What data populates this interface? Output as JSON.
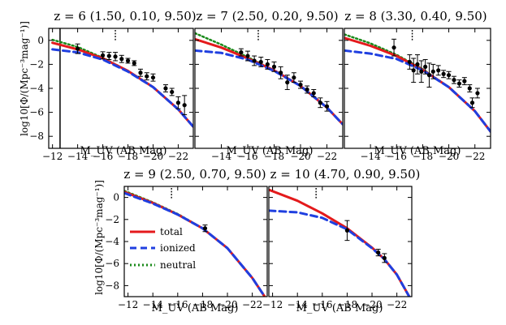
{
  "figure": {
    "ylabel": "log10[Φ/(Mpc⁻³mag⁻¹)]",
    "legend": {
      "placement": "lower-left of panel z = 9",
      "entries": [
        {
          "label": "total",
          "color": "#e41a1c",
          "style": "solid"
        },
        {
          "label": "ionized",
          "color": "#1f3fe0",
          "style": "dashed"
        },
        {
          "label": "neutral",
          "color": "#1a8a1a",
          "style": "dotted"
        }
      ]
    }
  },
  "chart_data": [
    {
      "type": "line",
      "title": "z = 6 (1.50, 0.10, 9.50)",
      "xlabel": "M_UV (AB Mag)",
      "ylabel": "log10[Φ/(Mpc⁻³mag⁻¹)]",
      "xlim": [
        -11.7,
        -23.2
      ],
      "ylim": [
        -9,
        1
      ],
      "xticks": [
        -12,
        -14,
        -16,
        -18,
        -20,
        -22
      ],
      "yticks": [
        0,
        -2,
        -4,
        -6,
        -8
      ],
      "xtick_labels": [
        "−12",
        "−14",
        "−16",
        "−18",
        "−20",
        "−22"
      ],
      "ytick_labels": [
        "0",
        "−2",
        "−4",
        "−6",
        "−8"
      ],
      "marker_x": -17.0,
      "vline_x": -12.6,
      "series": [
        {
          "name": "total",
          "x": [
            -12,
            -14,
            -16,
            -18,
            -20,
            -22,
            -23.2
          ],
          "y": [
            -0.2,
            -0.75,
            -1.5,
            -2.55,
            -3.9,
            -5.75,
            -7.2
          ]
        },
        {
          "name": "ionized",
          "x": [
            -12,
            -14,
            -16,
            -18,
            -20,
            -22,
            -23.2
          ],
          "y": [
            -0.75,
            -1.0,
            -1.6,
            -2.6,
            -3.9,
            -5.75,
            -7.2
          ]
        },
        {
          "name": "neutral",
          "x": [
            -12,
            -14,
            -16,
            -18,
            -20,
            -22,
            -23.2
          ],
          "y": [
            0.05,
            -0.55,
            -1.45,
            -2.55,
            -3.9,
            -5.75,
            -7.2
          ]
        }
      ],
      "observations": [
        {
          "x": -14.0,
          "y": -0.7,
          "err": 0.4
        },
        {
          "x": -16.0,
          "y": -1.25,
          "err": 0.3
        },
        {
          "x": -16.5,
          "y": -1.3,
          "err": 0.3
        },
        {
          "x": -17.0,
          "y": -1.35,
          "err": 0.35
        },
        {
          "x": -17.5,
          "y": -1.55,
          "err": 0.3
        },
        {
          "x": -18.0,
          "y": -1.7,
          "err": 0.2
        },
        {
          "x": -18.5,
          "y": -1.9,
          "err": 0.2
        },
        {
          "x": -19.0,
          "y": -2.7,
          "err": 0.3
        },
        {
          "x": -19.5,
          "y": -3.0,
          "err": 0.3
        },
        {
          "x": -20.0,
          "y": -3.1,
          "err": 0.3
        },
        {
          "x": -21.0,
          "y": -4.0,
          "err": 0.3
        },
        {
          "x": -21.5,
          "y": -4.3,
          "err": 0.3
        },
        {
          "x": -22.0,
          "y": -5.2,
          "err": 0.5
        },
        {
          "x": -22.5,
          "y": -5.4,
          "err": 0.8
        }
      ]
    },
    {
      "type": "line",
      "title": "z = 7 (2.50, 0.20, 9.50)",
      "xlabel": "M_UV (AB Mag)",
      "ylabel": "",
      "xlim": [
        -12,
        -23.2
      ],
      "ylim": [
        -9,
        1
      ],
      "xticks": [
        -14,
        -16,
        -18,
        -20,
        -22
      ],
      "yticks": [
        0,
        -2,
        -4,
        -6,
        -8
      ],
      "xtick_labels": [
        "−14",
        "−16",
        "−18",
        "−20",
        "−22"
      ],
      "ytick_labels": [],
      "marker_x": -16.8,
      "vline_x": null,
      "series": [
        {
          "name": "total",
          "x": [
            -12,
            -14,
            -16,
            -18,
            -20,
            -22,
            -23.2
          ],
          "y": [
            0.1,
            -0.6,
            -1.5,
            -2.5,
            -3.8,
            -5.6,
            -7.0
          ]
        },
        {
          "name": "ionized",
          "x": [
            -12,
            -14,
            -16,
            -18,
            -20,
            -22,
            -23.2
          ],
          "y": [
            -0.85,
            -1.05,
            -1.6,
            -2.55,
            -3.8,
            -5.6,
            -7.0
          ]
        },
        {
          "name": "neutral",
          "x": [
            -12,
            -14,
            -16,
            -18,
            -20,
            -22,
            -23.2
          ],
          "y": [
            0.6,
            -0.35,
            -1.4,
            -2.5,
            -3.8,
            -5.6,
            -7.0
          ]
        }
      ],
      "observations": [
        {
          "x": -15.5,
          "y": -1.0,
          "err": 0.3
        },
        {
          "x": -16.0,
          "y": -1.3,
          "err": 0.4
        },
        {
          "x": -16.5,
          "y": -1.7,
          "err": 0.4
        },
        {
          "x": -17.0,
          "y": -1.8,
          "err": 0.4
        },
        {
          "x": -17.5,
          "y": -2.0,
          "err": 0.4
        },
        {
          "x": -18.0,
          "y": -2.2,
          "err": 0.4
        },
        {
          "x": -18.5,
          "y": -2.7,
          "err": 0.5
        },
        {
          "x": -19.0,
          "y": -3.5,
          "err": 0.6
        },
        {
          "x": -19.5,
          "y": -3.1,
          "err": 0.4
        },
        {
          "x": -20.0,
          "y": -3.7,
          "err": 0.3
        },
        {
          "x": -20.5,
          "y": -4.1,
          "err": 0.3
        },
        {
          "x": -21.0,
          "y": -4.4,
          "err": 0.3
        },
        {
          "x": -21.5,
          "y": -5.2,
          "err": 0.4
        },
        {
          "x": -22.0,
          "y": -5.5,
          "err": 0.4
        }
      ]
    },
    {
      "type": "line",
      "title": "z = 8 (3.30, 0.40, 9.50)",
      "xlabel": "M_UV (AB Mag)",
      "ylabel": "",
      "xlim": [
        -12,
        -23.2
      ],
      "ylim": [
        -9,
        1
      ],
      "xticks": [
        -14,
        -16,
        -18,
        -20,
        -22
      ],
      "yticks": [
        0,
        -2,
        -4,
        -6,
        -8
      ],
      "xtick_labels": [
        "−14",
        "−16",
        "−18",
        "−20",
        "−22"
      ],
      "ytick_labels": [],
      "marker_x": -17.2,
      "vline_x": null,
      "series": [
        {
          "name": "total",
          "x": [
            -12,
            -14,
            -16,
            -18,
            -20,
            -22,
            -23.2
          ],
          "y": [
            0.2,
            -0.45,
            -1.3,
            -2.45,
            -3.9,
            -5.9,
            -7.6
          ]
        },
        {
          "name": "ionized",
          "x": [
            -12,
            -14,
            -16,
            -18,
            -20,
            -22,
            -23.2
          ],
          "y": [
            -0.85,
            -1.1,
            -1.55,
            -2.5,
            -3.9,
            -5.9,
            -7.6
          ]
        },
        {
          "name": "neutral",
          "x": [
            -12,
            -14,
            -16,
            -18,
            -20,
            -22,
            -23.2
          ],
          "y": [
            0.5,
            -0.25,
            -1.2,
            -2.4,
            -3.9,
            -5.9,
            -7.6
          ]
        }
      ],
      "observations": [
        {
          "x": -15.8,
          "y": -0.6,
          "err": 0.7
        },
        {
          "x": -17.0,
          "y": -1.8,
          "err": 0.6
        },
        {
          "x": -17.3,
          "y": -2.5,
          "err": 1.0
        },
        {
          "x": -17.6,
          "y": -2.0,
          "err": 0.8
        },
        {
          "x": -17.9,
          "y": -2.6,
          "err": 0.9
        },
        {
          "x": -18.2,
          "y": -2.2,
          "err": 0.6
        },
        {
          "x": -18.5,
          "y": -2.9,
          "err": 1.0
        },
        {
          "x": -18.8,
          "y": -2.6,
          "err": 0.6
        },
        {
          "x": -19.2,
          "y": -2.5,
          "err": 0.4
        },
        {
          "x": -19.6,
          "y": -2.8,
          "err": 0.3
        },
        {
          "x": -20.0,
          "y": -2.9,
          "err": 0.3
        },
        {
          "x": -20.4,
          "y": -3.3,
          "err": 0.3
        },
        {
          "x": -20.8,
          "y": -3.6,
          "err": 0.3
        },
        {
          "x": -21.2,
          "y": -3.4,
          "err": 0.3
        },
        {
          "x": -21.6,
          "y": -4.0,
          "err": 0.3
        },
        {
          "x": -21.8,
          "y": -5.2,
          "err": 0.4
        },
        {
          "x": -22.2,
          "y": -4.4,
          "err": 0.4
        }
      ]
    },
    {
      "type": "line",
      "title": "z = 9 (2.50, 0.70, 9.50)",
      "xlabel": "M_UV (AB Mag)",
      "ylabel": "log10[Φ/(Mpc⁻³mag⁻¹)]",
      "xlim": [
        -11.7,
        -23.2
      ],
      "ylim": [
        -9,
        1
      ],
      "xticks": [
        -12,
        -14,
        -16,
        -18,
        -20,
        -22
      ],
      "yticks": [
        0,
        -2,
        -4,
        -6,
        -8
      ],
      "xtick_labels": [
        "−12",
        "−14",
        "−16",
        "−18",
        "−20",
        "−22"
      ],
      "ytick_labels": [
        "0",
        "−2",
        "−4",
        "−6",
        "−8"
      ],
      "marker_x": -15.5,
      "vline_x": null,
      "series": [
        {
          "name": "total",
          "x": [
            -11.7,
            -14,
            -16,
            -18,
            -20,
            -22,
            -23.0
          ],
          "y": [
            0.5,
            -0.5,
            -1.55,
            -2.8,
            -4.6,
            -7.3,
            -9.0
          ]
        },
        {
          "name": "ionized",
          "x": [
            -11.7,
            -14,
            -16,
            -18,
            -20,
            -22,
            -23.0
          ],
          "y": [
            0.4,
            -0.55,
            -1.55,
            -2.8,
            -4.6,
            -7.3,
            -9.0
          ]
        },
        {
          "name": "neutral",
          "x": [
            -11.7,
            -14,
            -16,
            -18,
            -20,
            -22,
            -23.0
          ],
          "y": [
            0.6,
            -0.45,
            -1.5,
            -2.8,
            -4.6,
            -7.3,
            -9.0
          ]
        }
      ],
      "observations": [
        {
          "x": -18.2,
          "y": -2.8,
          "err": 0.3
        }
      ]
    },
    {
      "type": "line",
      "title": "z = 10 (4.70, 0.90, 9.50)",
      "xlabel": "M_UV (AB Mag)",
      "ylabel": "",
      "xlim": [
        -11.7,
        -23.2
      ],
      "ylim": [
        -9,
        1
      ],
      "xticks": [
        -12,
        -14,
        -16,
        -18,
        -20,
        -22
      ],
      "yticks": [
        0,
        -2,
        -4,
        -6,
        -8
      ],
      "xtick_labels": [
        "−12",
        "−14",
        "−16",
        "−18",
        "−20",
        "−22"
      ],
      "ytick_labels": [],
      "marker_x": -15.5,
      "vline_x": null,
      "series": [
        {
          "name": "total",
          "x": [
            -11.7,
            -14,
            -16,
            -18,
            -20,
            -21,
            -22,
            -23.0
          ],
          "y": [
            0.7,
            -0.3,
            -1.45,
            -2.8,
            -4.55,
            -5.6,
            -7.0,
            -9.0
          ]
        },
        {
          "name": "ionized",
          "x": [
            -11.7,
            -14,
            -16,
            -18,
            -20,
            -21,
            -22,
            -23.0
          ],
          "y": [
            -1.2,
            -1.35,
            -1.85,
            -2.9,
            -4.6,
            -5.6,
            -7.0,
            -9.0
          ]
        },
        {
          "name": "neutral",
          "x": [
            -11.7,
            -14,
            -16,
            -18,
            -20,
            -21,
            -22,
            -23.0
          ],
          "y": [
            0.7,
            -0.3,
            -1.45,
            -2.8,
            -4.55,
            -5.6,
            -7.0,
            -9.0
          ]
        }
      ],
      "observations": [
        {
          "x": -18.0,
          "y": -3.0,
          "err": 0.9
        },
        {
          "x": -20.5,
          "y": -5.0,
          "err": 0.3
        },
        {
          "x": -21.0,
          "y": -5.5,
          "err": 0.4
        }
      ]
    }
  ]
}
